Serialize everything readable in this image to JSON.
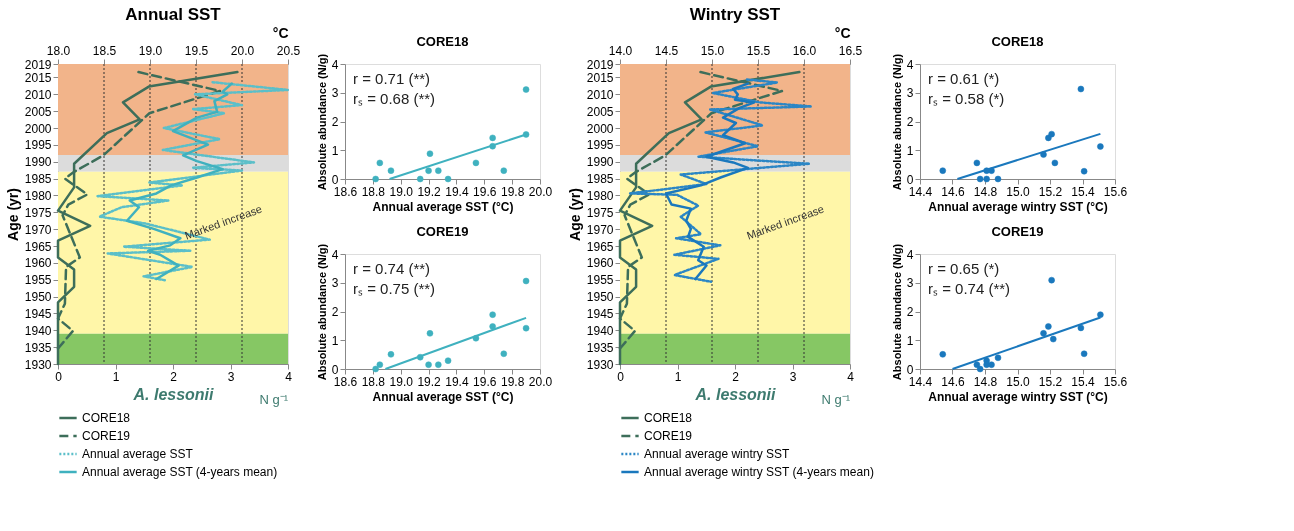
{
  "chart_data": [
    {
      "type": "line",
      "title": "Annual SST",
      "ylabel": "Age (yr)",
      "xlabel": "A. lessonii",
      "x2label": "°C",
      "orientation": "horizontal",
      "xlim": [
        0,
        4
      ],
      "xticks": [
        0,
        1,
        2,
        3,
        4
      ],
      "x2lim": [
        18,
        20.5
      ],
      "x2ticks": [
        {
          "value": 18,
          "label": "18.0"
        },
        18.5,
        {
          "value": 19,
          "label": "19.0"
        },
        19.5,
        {
          "value": 20,
          "label": "20.0"
        },
        20.5
      ],
      "ylim": [
        1930,
        2019
      ],
      "yticks": [
        1930,
        1935,
        1940,
        1945,
        1950,
        1955,
        1960,
        1965,
        1970,
        1975,
        1980,
        1985,
        1990,
        1995,
        2000,
        2005,
        2010,
        2015,
        2019
      ],
      "legend": "bottom",
      "grid": false,
      "series": [
        {
          "name": "CORE18",
          "color": "#3d6e5a",
          "line_style": "solid",
          "x": [
            2016.6,
            2012.3,
            2007.6,
            2002.6,
            1998.5,
            1989.4,
            1982.4,
            1975.5,
            1971,
            1966.6,
            1961.6,
            1958,
            1952.9,
            1948.3,
            1930
          ],
          "values": [
            3.12,
            1.58,
            1.13,
            1.42,
            0.85,
            0.28,
            0.28,
            0,
            0.56,
            0,
            0,
            0.28,
            0.28,
            0,
            0
          ]
        },
        {
          "name": "CORE19",
          "color": "#3d6e5a",
          "line_style": "dashed",
          "x": [
            2016.6,
            2011,
            2004.4,
            1991.9,
            1987,
            1985,
            1980.3,
            1977.3,
            1974.1,
            1961.6,
            1958.8,
            1947.9,
            1943.5,
            1939.8,
            1934.6
          ],
          "values": [
            1.4,
            2.82,
            1.59,
            0.79,
            0.28,
            0.12,
            0.51,
            0.18,
            0.08,
            0.38,
            0.14,
            0.12,
            0,
            0.26,
            0
          ]
        },
        {
          "name": "Annual average SST",
          "color": "#5bbfc9",
          "line_style": "dotted",
          "axis": "x2",
          "x": [
            2013.6,
            2011.3,
            2010,
            2006.8,
            2005.6,
            2004.4,
            2000,
            1996.7,
            1993.5,
            1989.8,
            1988.2,
            1987.4,
            1983.8,
            1983,
            1979.8,
            1978.5,
            1976.5,
            1973.7,
            1971.7,
            1966.9,
            1964.8,
            1963.6,
            1962.8,
            1958.8,
            1956,
            1954.8
          ],
          "values": [
            19.68,
            20.5,
            19.49,
            20.0,
            19.46,
            19.81,
            19.15,
            19.76,
            19.14,
            20.13,
            19.46,
            20.0,
            18.99,
            19.35,
            18.43,
            19.2,
            18.69,
            18.45,
            18.95,
            19.65,
            18.71,
            19.44,
            18.54,
            19.46,
            18.93,
            19.17
          ]
        },
        {
          "name": "Annual average SST (4-years mean)",
          "color": "#3fb1bf",
          "line_style": "solid",
          "axis": "x2",
          "x": [
            2013.2,
            2010.8,
            2010,
            2008,
            2004.8,
            2003.1,
            1999.1,
            1995.1,
            1991.9,
            1990.2,
            1987.8,
            1985.4,
            1983,
            1980.6,
            1978.5,
            1976.5,
            1972.5,
            1970.1,
            1967.3,
            1965.2,
            1963.6,
            1962.4,
            1959.2,
            1955.2
          ],
          "values": [
            19.89,
            19.79,
            19.84,
            19.7,
            19.73,
            19.51,
            19.25,
            19.63,
            19.36,
            19.51,
            19.79,
            19.52,
            19.23,
            19.07,
            18.78,
            18.88,
            18.75,
            19.04,
            19.33,
            19.22,
            18.98,
            19.11,
            19.31,
            19.07
          ]
        }
      ],
      "bands": [
        {
          "axis": "y",
          "from": 1992,
          "to": 2019,
          "color": "#f2b48a"
        },
        {
          "axis": "y",
          "from": 1987,
          "to": 1992,
          "color": "#dcdcdc"
        },
        {
          "axis": "y",
          "from": 1939,
          "to": 1987,
          "color": "#fff6a8"
        },
        {
          "axis": "y",
          "from": 1930,
          "to": 1939,
          "color": "#86c764"
        }
      ],
      "ref_lines": [
        {
          "axis": "x2",
          "value": 18.5,
          "line_style": "dotted"
        },
        {
          "axis": "x2",
          "value": 19,
          "line_style": "dotted"
        },
        {
          "axis": "x2",
          "value": 19.5,
          "line_style": "dotted"
        },
        {
          "axis": "x2",
          "value": 20,
          "line_style": "dotted"
        }
      ],
      "annotations": [
        "Marked increase",
        "N g⁻¹"
      ]
    },
    {
      "type": "scatter",
      "title": "CORE18",
      "xlabel": "Annual average SST (°C)",
      "ylabel": "Absolute abundance (N/g)",
      "xlim": [
        18.6,
        20.0
      ],
      "xticks": [
        18.6,
        18.8,
        {
          "value": 19,
          "label": "19.0"
        },
        19.2,
        19.4,
        19.6,
        19.8,
        {
          "value": 20,
          "label": "20.0"
        }
      ],
      "ylim": [
        0,
        4
      ],
      "yticks": [
        0,
        1,
        2,
        3,
        4
      ],
      "grid": false,
      "series": [
        {
          "type": "scatter",
          "marker": "circle",
          "color": "#3fb1bf",
          "x": [
            18.82,
            18.85,
            18.93,
            19.14,
            19.2,
            19.21,
            19.27,
            19.34,
            19.54,
            19.66,
            19.66,
            19.74,
            19.9,
            19.9
          ],
          "values": [
            0,
            0.56,
            0.29,
            0,
            0.29,
            0.88,
            0.29,
            0,
            0.56,
            1.14,
            1.43,
            0.29,
            3.11,
            1.55
          ]
        },
        {
          "type": "line",
          "color": "#3fb1bf",
          "x": [
            18.92,
            19.9
          ],
          "values": [
            0,
            1.55
          ]
        }
      ],
      "annotations": [
        "r = 0.71 (**)",
        "rₛ = 0.68 (**)"
      ]
    },
    {
      "type": "scatter",
      "title": "CORE19",
      "xlabel": "Annual average SST (°C)",
      "ylabel": "Absolute abundance (N/g)",
      "xlim": [
        18.6,
        20.0
      ],
      "xticks": [
        18.6,
        18.8,
        {
          "value": 19,
          "label": "19.0"
        },
        19.2,
        19.4,
        19.6,
        19.8,
        {
          "value": 20,
          "label": "20.0"
        }
      ],
      "ylim": [
        0,
        4
      ],
      "yticks": [
        0,
        1,
        2,
        3,
        4
      ],
      "grid": false,
      "series": [
        {
          "type": "scatter",
          "marker": "circle",
          "color": "#3fb1bf",
          "x": [
            18.82,
            18.85,
            18.93,
            19.14,
            19.2,
            19.21,
            19.27,
            19.34,
            19.54,
            19.66,
            19.66,
            19.74,
            19.9,
            19.9
          ],
          "values": [
            0,
            0.15,
            0.51,
            0.41,
            0.15,
            1.24,
            0.15,
            0.29,
            1.07,
            1.89,
            1.48,
            0.53,
            3.06,
            1.42
          ]
        },
        {
          "type": "line",
          "color": "#3fb1bf",
          "x": [
            18.89,
            19.9
          ],
          "values": [
            0,
            1.78
          ]
        }
      ],
      "annotations": [
        "r = 0.74 (**)",
        "rₛ = 0.75 (**)"
      ]
    },
    {
      "type": "line",
      "title": "Wintry SST",
      "ylabel": "Age (yr)",
      "xlabel": "A. lessonii",
      "x2label": "°C",
      "orientation": "horizontal",
      "xlim": [
        0,
        4
      ],
      "xticks": [
        0,
        1,
        2,
        3,
        4
      ],
      "x2lim": [
        14,
        16.5
      ],
      "x2ticks": [
        {
          "value": 14,
          "label": "14.0"
        },
        14.5,
        {
          "value": 15,
          "label": "15.0"
        },
        15.5,
        {
          "value": 16,
          "label": "16.0"
        },
        16.5
      ],
      "ylim": [
        1930,
        2019
      ],
      "yticks": [
        1930,
        1935,
        1940,
        1945,
        1950,
        1955,
        1960,
        1965,
        1970,
        1975,
        1980,
        1985,
        1990,
        1995,
        2000,
        2005,
        2010,
        2015,
        2019
      ],
      "legend": "bottom",
      "grid": false,
      "series": [
        {
          "name": "CORE18",
          "color": "#3d6e5a",
          "line_style": "solid",
          "x": [
            2016.6,
            2012.3,
            2007.6,
            2002.6,
            1998.5,
            1989.4,
            1982.4,
            1975.5,
            1971,
            1966.6,
            1961.6,
            1958,
            1952.9,
            1948.3,
            1930
          ],
          "values": [
            3.12,
            1.58,
            1.13,
            1.42,
            0.85,
            0.28,
            0.28,
            0,
            0.56,
            0,
            0,
            0.28,
            0.28,
            0,
            0
          ]
        },
        {
          "name": "CORE19",
          "color": "#3d6e5a",
          "line_style": "dashed",
          "x": [
            2016.6,
            2011,
            2004.4,
            1991.9,
            1987,
            1985,
            1980.3,
            1977.3,
            1974.1,
            1961.6,
            1958.8,
            1947.9,
            1943.5,
            1939.8,
            1934.6
          ],
          "values": [
            1.4,
            2.82,
            1.59,
            0.79,
            0.28,
            0.12,
            0.51,
            0.18,
            0.08,
            0.38,
            0.14,
            0.12,
            0,
            0.26,
            0
          ]
        },
        {
          "name": "Annual average wintry SST",
          "color": "#2b86c5",
          "line_style": "dotted",
          "axis": "x2",
          "x": [
            2014.4,
            2013.5,
            2010.4,
            2007.6,
            2006.4,
            2005.5,
            2000.8,
            1998.7,
            1994.6,
            1991.5,
            1989.4,
            1986.2,
            1983.4,
            1980.6,
            1980.2,
            1977,
            1973.7,
            1968.5,
            1967.3,
            1965.2,
            1962.4,
            1961.2,
            1956.4,
            1954.4
          ],
          "values": [
            15.38,
            15.71,
            15.01,
            15.52,
            16.08,
            14.98,
            15.55,
            14.93,
            15.5,
            14.85,
            16.06,
            14.66,
            14.94,
            14.11,
            14.62,
            14.85,
            14.66,
            14.88,
            14.61,
            15.09,
            14.59,
            15.07,
            14.59,
            14.99
          ]
        },
        {
          "name": "Annual average wintry SST (4-years mean)",
          "color": "#1a78bd",
          "line_style": "solid",
          "axis": "x2",
          "x": [
            2013.2,
            2011.6,
            2010,
            2008.4,
            2007.6,
            2006,
            2003.1,
            2001.5,
            1997.9,
            1995.5,
            1991.5,
            1989.8,
            1988.2,
            1985.4,
            1983,
            1980.6,
            1977.3,
            1976.1,
            1972.5,
            1970.1,
            1967.7,
            1964.8,
            1960.8,
            1959.2,
            1955.2
          ],
          "values": [
            15.39,
            15.23,
            15.28,
            15.25,
            15.46,
            15.3,
            15.12,
            15.26,
            15.12,
            15.36,
            14.94,
            15.23,
            15.39,
            15.1,
            14.88,
            14.5,
            14.56,
            14.77,
            14.72,
            14.77,
            14.74,
            14.91,
            14.85,
            14.94,
            14.82
          ]
        }
      ],
      "bands": [
        {
          "axis": "y",
          "from": 1992,
          "to": 2019,
          "color": "#f2b48a"
        },
        {
          "axis": "y",
          "from": 1987,
          "to": 1992,
          "color": "#dcdcdc"
        },
        {
          "axis": "y",
          "from": 1939,
          "to": 1987,
          "color": "#fff6a8"
        },
        {
          "axis": "y",
          "from": 1930,
          "to": 1939,
          "color": "#86c764"
        }
      ],
      "ref_lines": [
        {
          "axis": "x2",
          "value": 14.5,
          "line_style": "dotted"
        },
        {
          "axis": "x2",
          "value": 15,
          "line_style": "dotted"
        },
        {
          "axis": "x2",
          "value": 15.5,
          "line_style": "dotted"
        },
        {
          "axis": "x2",
          "value": 16,
          "line_style": "dotted"
        }
      ],
      "annotations": [
        "Marked increase",
        "N g⁻¹"
      ]
    },
    {
      "type": "scatter",
      "title": "CORE18",
      "xlabel": "Annual average wintry SST (°C)",
      "ylabel": "Absolute abundance (N/g)",
      "xlim": [
        14.4,
        15.6
      ],
      "xticks": [
        14.4,
        14.6,
        14.8,
        {
          "value": 15,
          "label": "15.0"
        },
        15.2,
        15.4,
        15.6
      ],
      "ylim": [
        0,
        4
      ],
      "yticks": [
        0,
        1,
        2,
        3,
        4
      ],
      "grid": false,
      "series": [
        {
          "type": "scatter",
          "marker": "circle",
          "color": "#1a78bd",
          "x": [
            14.54,
            14.75,
            14.77,
            14.81,
            14.81,
            14.84,
            14.88,
            15.16,
            15.19,
            15.21,
            15.23,
            15.39,
            15.41,
            15.51
          ],
          "values": [
            0.29,
            0.56,
            0,
            0.29,
            0,
            0.29,
            0,
            0.85,
            1.43,
            1.56,
            0.56,
            3.13,
            0.27,
            1.13
          ]
        },
        {
          "type": "line",
          "color": "#1a78bd",
          "x": [
            14.63,
            15.51
          ],
          "values": [
            0,
            1.57
          ]
        }
      ],
      "annotations": [
        "r = 0.61 (*)",
        "rₛ = 0.58 (*)"
      ]
    },
    {
      "type": "scatter",
      "title": "CORE19",
      "xlabel": "Annual average wintry SST (°C)",
      "ylabel": "Absolute abundance (N/g)",
      "xlim": [
        14.4,
        15.6
      ],
      "xticks": [
        14.4,
        14.6,
        14.8,
        {
          "value": 15,
          "label": "15.0"
        },
        15.2,
        15.4,
        15.6
      ],
      "ylim": [
        0,
        4
      ],
      "yticks": [
        0,
        1,
        2,
        3,
        4
      ],
      "grid": false,
      "series": [
        {
          "type": "scatter",
          "marker": "circle",
          "color": "#1a78bd",
          "x": [
            14.54,
            14.75,
            14.77,
            14.81,
            14.81,
            14.84,
            14.88,
            15.16,
            15.19,
            15.21,
            15.22,
            15.39,
            15.41,
            15.51
          ],
          "values": [
            0.51,
            0.15,
            0,
            0.29,
            0.15,
            0.15,
            0.39,
            1.24,
            1.48,
            3.09,
            1.04,
            1.43,
            0.53,
            1.89
          ]
        },
        {
          "type": "line",
          "color": "#1a78bd",
          "x": [
            14.6,
            15.51
          ],
          "values": [
            0,
            1.79
          ]
        }
      ],
      "annotations": [
        "r = 0.65 (*)",
        "rₛ = 0.74 (**)"
      ]
    }
  ]
}
